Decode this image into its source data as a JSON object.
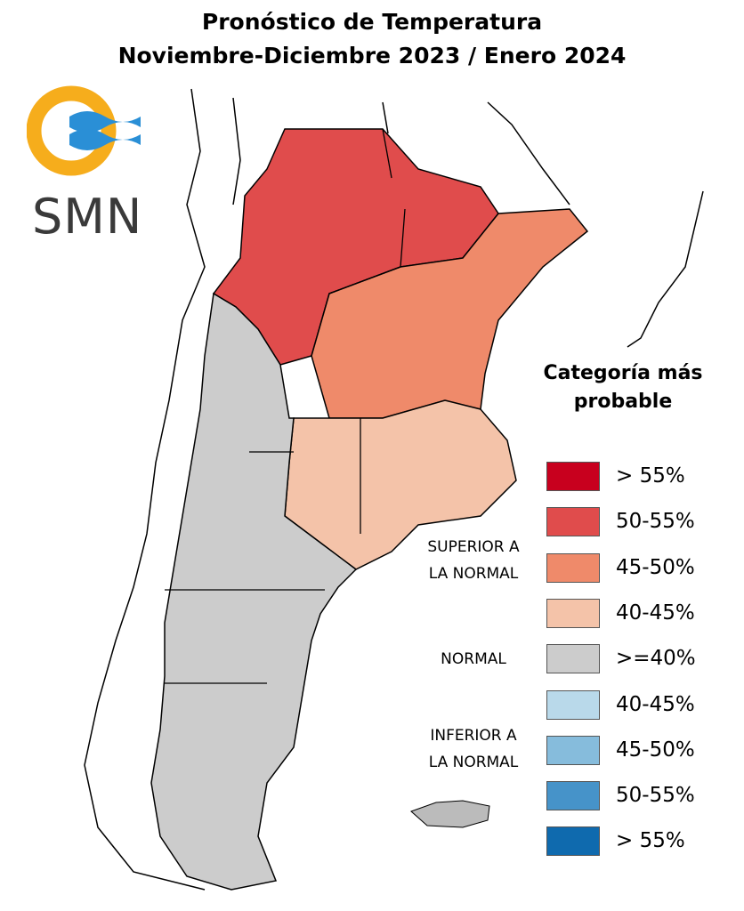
{
  "title": {
    "line1": "Pronóstico de Temperatura",
    "line2": "Noviembre-Diciembre 2023 / Enero 2024"
  },
  "logo": {
    "text": "SMN",
    "icon": "smn-sun-waves-logo"
  },
  "legend": {
    "title_line1": "Categoría más",
    "title_line2": "probable",
    "items": [
      {
        "label": "> 55%",
        "color": "#c8001e"
      },
      {
        "label": "50-55%",
        "color": "#e04c4c"
      },
      {
        "label": "45-50%",
        "color": "#ef8a6a"
      },
      {
        "label": "40-45%",
        "color": "#f4c3a9"
      },
      {
        "label": ">=40%",
        "color": "#cccccc"
      },
      {
        "label": "40-45%",
        "color": "#b9d9ea"
      },
      {
        "label": "45-50%",
        "color": "#86bcdc"
      },
      {
        "label": "50-55%",
        "color": "#4693c9"
      },
      {
        "label": "> 55%",
        "color": "#0f6aae"
      }
    ],
    "categories": {
      "superior_line1": "SUPERIOR A",
      "superior_line2": "LA NORMAL",
      "normal": "NORMAL",
      "inferior_line1": "INFERIOR A",
      "inferior_line2": "LA NORMAL"
    }
  },
  "map_regions": {
    "north_west": {
      "category": "50-55%",
      "color": "#e04c4c"
    },
    "north_east": {
      "category": "45-50%",
      "color": "#ef8a6a"
    },
    "pampas": {
      "category": "40-45%",
      "color": "#f4c3a9"
    },
    "patagonia_andes": {
      "category": ">=40%",
      "color": "#cccccc"
    }
  }
}
